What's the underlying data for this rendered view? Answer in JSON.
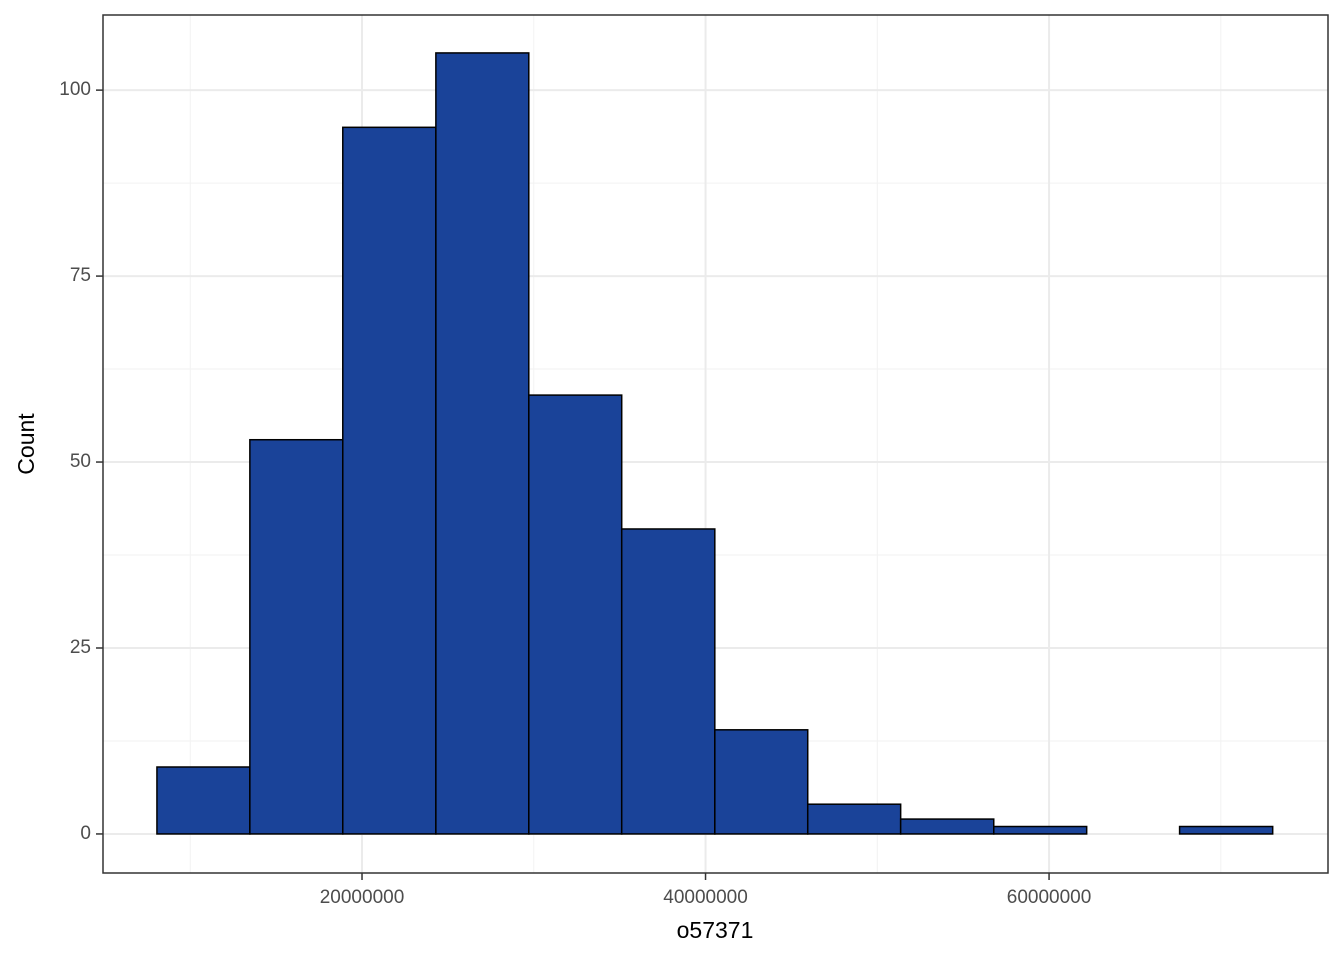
{
  "chart_data": {
    "type": "histogram",
    "x_label": "o57371",
    "y_label": "Count",
    "bins": [
      8060000,
      13470000,
      18880000,
      24300000,
      29710000,
      35120000,
      40540000,
      45950000,
      51360000,
      56780000,
      62190000,
      67600000,
      73020000
    ],
    "counts": [
      9,
      53,
      95,
      105,
      59,
      41,
      14,
      4,
      2,
      1,
      0,
      1
    ],
    "color": "#1a4399",
    "edge_color": "#000000",
    "xlim": [
      4920000,
      76240000
    ],
    "ylim": [
      -5.25,
      110.1
    ],
    "xticks": [
      20000000,
      40000000,
      60000000
    ],
    "yticks": [
      0,
      25,
      50,
      75,
      100
    ],
    "x_minor_ticks": [
      10000000,
      30000000,
      50000000,
      70000000
    ],
    "y_minor_ticks": [
      12.5,
      37.5,
      62.5,
      87.5
    ],
    "grid": true
  }
}
